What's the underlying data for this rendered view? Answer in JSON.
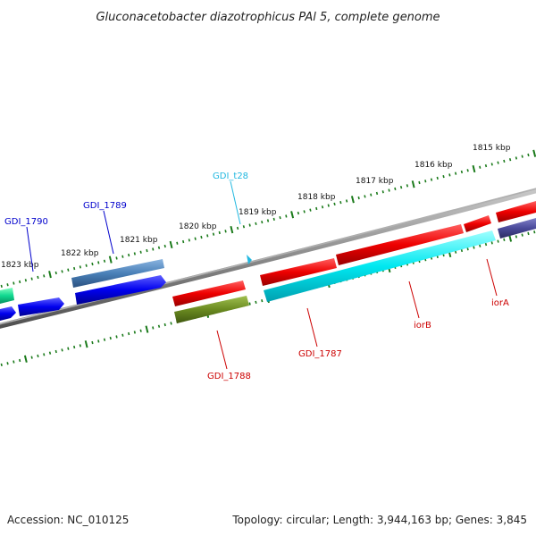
{
  "title": "Gluconacetobacter diazotrophicus PAl 5, complete genome",
  "footer": {
    "accession": "Accession: NC_010125",
    "topology": "Topology: circular; Length: 3,944,163 bp; Genes: 3,845"
  },
  "ticks": [
    "1815 kbp",
    "1816 kbp",
    "1817 kbp",
    "1818 kbp",
    "1819 kbp",
    "1820 kbp",
    "1821 kbp",
    "1822 kbp",
    "1823 kbp"
  ],
  "genes": [
    {
      "label": "GDI_1790",
      "color": "#0000cc"
    },
    {
      "label": "GDI_1789",
      "color": "#0000cc"
    },
    {
      "label": "GDI_t28",
      "color": "#22b8e0"
    },
    {
      "label": "GDI_1788",
      "color": "#cc0000"
    },
    {
      "label": "GDI_1787",
      "color": "#cc0000"
    },
    {
      "label": "iorB",
      "color": "#cc0000"
    },
    {
      "label": "iorA",
      "color": "#cc0000"
    }
  ],
  "colors": {
    "backbone": "#8a8a8a",
    "tick": "#1a7a1a",
    "red_feature": "#ee0000",
    "blue_feature": "#0000ee",
    "steelblue_feature": "#4a80b8",
    "cyan_feature": "#00e8f0",
    "olive_feature": "#6a8a20",
    "purple_feature": "#4a4a9a",
    "green_feature": "#10d890"
  }
}
